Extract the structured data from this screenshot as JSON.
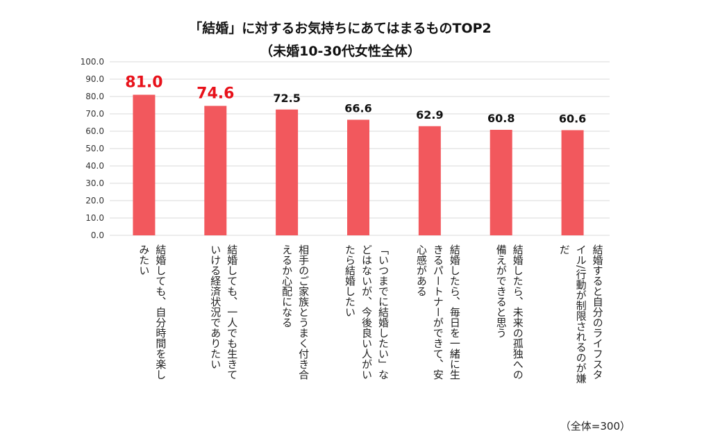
{
  "chart_data": {
    "type": "bar",
    "title": "「結婚」に対するお気持ちにあてはまるものTOP2",
    "subtitle": "（未婚10-30代女性全体）",
    "categories": [
      [
        "結婚しても、自分時間を楽し",
        "みたい"
      ],
      [
        "結婚しても、一人でも生きて",
        "いける経済状況でありたい"
      ],
      [
        "相手のご家族とうまく付き合",
        "えるか心配になる"
      ],
      [
        "「いつまでに結婚したい」な",
        "どはないが、今後良い人がい",
        "たら結婚したい"
      ],
      [
        "結婚したら、毎日を一緒に生",
        "きるパートナーができて、安",
        "心感がある"
      ],
      [
        "結婚したら、未来の孤独への",
        "備えができると思う"
      ],
      [
        "結婚すると自分のライフスタ",
        "イル/行動が制限されるのが嫌",
        "だ"
      ]
    ],
    "values": [
      81.0,
      74.6,
      72.5,
      66.6,
      62.9,
      60.8,
      60.6
    ],
    "value_labels": [
      "81.0",
      "74.6",
      "72.5",
      "66.6",
      "62.9",
      "60.8",
      "60.6"
    ],
    "highlight_count": 2,
    "ylim": [
      0,
      100
    ],
    "yticks": [
      "0.0",
      "10.0",
      "20.0",
      "30.0",
      "40.0",
      "50.0",
      "60.0",
      "70.0",
      "80.0",
      "90.0",
      "100.0"
    ],
    "grid": true,
    "note": "（全体=300）",
    "colors": {
      "bar": "#f2585d",
      "highlight_label": "#e8111a",
      "label": "#111111",
      "grid": "#d9d9d9"
    }
  }
}
